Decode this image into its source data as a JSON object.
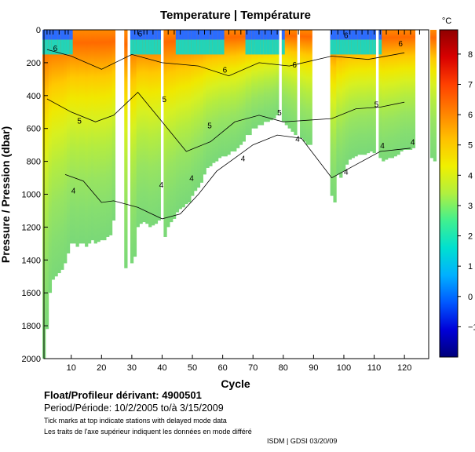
{
  "chart_data": {
    "type": "heatmap",
    "title": "Temperature | Température",
    "xlabel": "Cycle",
    "ylabel": "Pressure / Pression (dbar)",
    "xlim": [
      1,
      128
    ],
    "ylim": [
      0,
      2000
    ],
    "y_inverted": true,
    "x_ticks": [
      10,
      20,
      30,
      40,
      50,
      60,
      70,
      80,
      90,
      100,
      110,
      120
    ],
    "y_ticks": [
      0,
      200,
      400,
      600,
      800,
      1000,
      1200,
      1400,
      1600,
      1800,
      2000
    ],
    "colorbar": {
      "unit": "°C",
      "range": [
        -2,
        8.8
      ],
      "ticks": [
        -1,
        0,
        1,
        2,
        3,
        4,
        5,
        6,
        7,
        8
      ],
      "stops": [
        "#00007a",
        "#0000d8",
        "#0058ff",
        "#00b0ff",
        "#00e0d0",
        "#40f090",
        "#b0f040",
        "#f0f000",
        "#ffc000",
        "#ff8000",
        "#ff4000",
        "#d80000",
        "#900000"
      ]
    },
    "contour_labels": [
      "4",
      "5",
      "6"
    ],
    "profile_max_depth": [
      2000,
      1820,
      1600,
      1520,
      1500,
      1480,
      1460,
      1420,
      1360,
      1300,
      1300,
      1320,
      1300,
      1300,
      1320,
      1300,
      1280,
      1300,
      1290,
      1280,
      1280,
      1260,
      1250,
      1160,
      0,
      0,
      0,
      1450,
      0,
      1420,
      1380,
      1200,
      1180,
      1170,
      1180,
      1200,
      1190,
      1180,
      1160,
      0,
      1260,
      1200,
      1170,
      1150,
      1110,
      1090,
      1080,
      1060,
      1050,
      1010,
      980,
      960,
      930,
      880,
      840,
      830,
      810,
      800,
      780,
      770,
      770,
      760,
      740,
      740,
      720,
      700,
      680,
      640,
      640,
      600,
      600,
      580,
      580,
      560,
      560,
      550,
      540,
      520,
      0,
      560,
      580,
      600,
      620,
      640,
      0,
      660,
      680,
      700,
      700,
      0,
      0,
      0,
      0,
      0,
      0,
      1010,
      1050,
      880,
      900,
      860,
      820,
      790,
      780,
      770,
      760,
      760,
      760,
      750,
      740,
      750,
      0,
      780,
      800,
      790,
      780,
      780,
      770,
      760,
      740,
      730,
      730,
      730,
      720,
      0,
      0,
      0,
      0,
      0,
      780,
      800,
      0
    ],
    "delayed_mode_ticks": [
      2,
      3,
      4,
      6,
      8,
      9,
      31,
      32,
      34,
      35,
      37,
      42,
      44,
      46,
      52,
      54,
      56,
      62,
      64,
      66,
      68,
      72,
      74,
      76,
      78,
      82,
      85,
      96,
      98,
      100,
      102,
      104,
      106,
      108,
      110,
      112,
      114,
      118,
      120,
      122,
      125
    ]
  },
  "footer": {
    "float": "Float/Profileur dérivant:  4900501",
    "period": "Period/Période:  10/2/2005  to/à  3/15/2009",
    "note_en": "Tick marks at top indicate stations with delayed mode data",
    "note_fr": "Les traits de l'axe supérieur indiquent les données en mode différé",
    "credit": "ISDM | GDSI  03/20/09"
  }
}
